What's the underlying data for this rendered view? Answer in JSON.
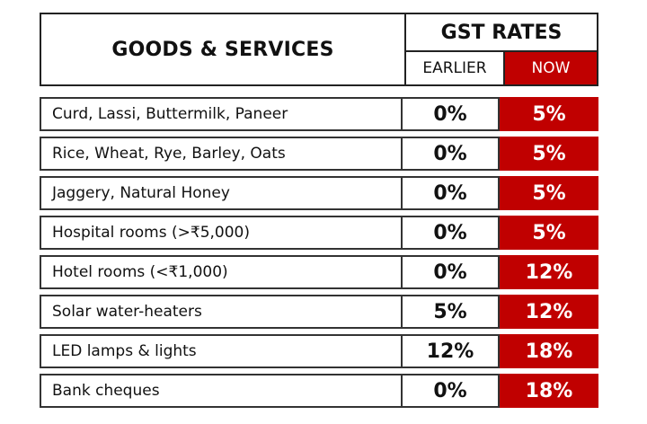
{
  "header": {
    "title": "GOODS & SERVICES",
    "rates_title": "GST RATES",
    "earlier_label": "EARLIER",
    "now_label": "NOW"
  },
  "colors": {
    "accent": "#c00000",
    "border": "#222222",
    "text": "#111111"
  },
  "rows": [
    {
      "name": "Curd, Lassi, Buttermilk, Paneer",
      "earlier": "0%",
      "now": "5%"
    },
    {
      "name": "Rice, Wheat, Rye, Barley, Oats",
      "earlier": "0%",
      "now": "5%"
    },
    {
      "name": "Jaggery, Natural Honey",
      "earlier": "0%",
      "now": "5%"
    },
    {
      "name": "Hospital rooms (>₹5,000)",
      "earlier": "0%",
      "now": "5%"
    },
    {
      "name": "Hotel rooms (<₹1,000)",
      "earlier": "0%",
      "now": "12%"
    },
    {
      "name": "Solar water-heaters",
      "earlier": "5%",
      "now": "12%"
    },
    {
      "name": "LED lamps & lights",
      "earlier": "12%",
      "now": "18%"
    },
    {
      "name": "Bank cheques",
      "earlier": "0%",
      "now": "18%"
    }
  ]
}
